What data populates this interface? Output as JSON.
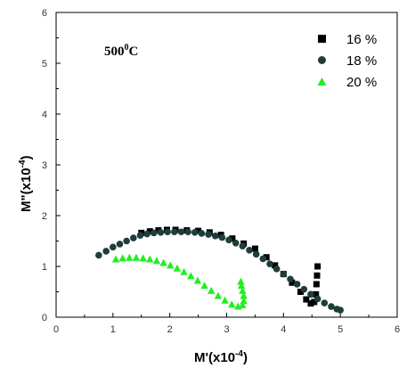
{
  "chart_data": {
    "type": "scatter",
    "xlabel": "M'(x10",
    "xlabel_exp": "-4",
    "xlabel_close": ")",
    "ylabel": "M\"(x10",
    "ylabel_exp": "-4",
    "ylabel_close": ")",
    "xlim": [
      0,
      6
    ],
    "ylim": [
      0,
      6
    ],
    "xticks": [
      "0",
      "1",
      "2",
      "3",
      "4",
      "5",
      "6"
    ],
    "yticks": [
      "0",
      "1",
      "2",
      "3",
      "4",
      "5",
      "6"
    ],
    "grid": false,
    "legend_position": "top-right",
    "annotation": {
      "text": "500",
      "sup": "0",
      "suffix": "C"
    },
    "series": [
      {
        "name": "16 %",
        "marker": "square",
        "color": "#000000",
        "points": [
          [
            1.5,
            1.66
          ],
          [
            1.65,
            1.69
          ],
          [
            1.8,
            1.71
          ],
          [
            1.95,
            1.72
          ],
          [
            2.1,
            1.72
          ],
          [
            2.3,
            1.71
          ],
          [
            2.5,
            1.7
          ],
          [
            2.7,
            1.67
          ],
          [
            2.9,
            1.62
          ],
          [
            3.1,
            1.55
          ],
          [
            3.3,
            1.45
          ],
          [
            3.5,
            1.35
          ],
          [
            3.7,
            1.18
          ],
          [
            3.85,
            1.02
          ],
          [
            4.0,
            0.85
          ],
          [
            4.15,
            0.68
          ],
          [
            4.3,
            0.5
          ],
          [
            4.4,
            0.35
          ],
          [
            4.48,
            0.27
          ],
          [
            4.54,
            0.3
          ],
          [
            4.57,
            0.45
          ],
          [
            4.58,
            0.65
          ],
          [
            4.59,
            0.82
          ],
          [
            4.6,
            1.0
          ]
        ]
      },
      {
        "name": "18 %",
        "marker": "circle",
        "color": "#1f3d3a",
        "points": [
          [
            0.75,
            1.22
          ],
          [
            0.88,
            1.3
          ],
          [
            1.0,
            1.38
          ],
          [
            1.12,
            1.44
          ],
          [
            1.24,
            1.5
          ],
          [
            1.36,
            1.56
          ],
          [
            1.48,
            1.61
          ],
          [
            1.6,
            1.64
          ],
          [
            1.72,
            1.66
          ],
          [
            1.84,
            1.67
          ],
          [
            1.96,
            1.68
          ],
          [
            2.08,
            1.68
          ],
          [
            2.2,
            1.68
          ],
          [
            2.32,
            1.68
          ],
          [
            2.44,
            1.67
          ],
          [
            2.56,
            1.65
          ],
          [
            2.68,
            1.63
          ],
          [
            2.8,
            1.6
          ],
          [
            2.92,
            1.57
          ],
          [
            3.04,
            1.52
          ],
          [
            3.16,
            1.46
          ],
          [
            3.28,
            1.4
          ],
          [
            3.4,
            1.32
          ],
          [
            3.52,
            1.24
          ],
          [
            3.64,
            1.15
          ],
          [
            3.76,
            1.05
          ],
          [
            3.88,
            0.95
          ],
          [
            4.0,
            0.85
          ],
          [
            4.12,
            0.75
          ],
          [
            4.24,
            0.65
          ],
          [
            4.36,
            0.55
          ],
          [
            4.48,
            0.45
          ],
          [
            4.6,
            0.36
          ],
          [
            4.72,
            0.28
          ],
          [
            4.84,
            0.21
          ],
          [
            4.94,
            0.16
          ],
          [
            5.0,
            0.14
          ]
        ]
      },
      {
        "name": "20 %",
        "marker": "triangle",
        "color": "#22ee22",
        "points": [
          [
            1.05,
            1.14
          ],
          [
            1.17,
            1.16
          ],
          [
            1.29,
            1.17
          ],
          [
            1.41,
            1.17
          ],
          [
            1.53,
            1.16
          ],
          [
            1.65,
            1.14
          ],
          [
            1.77,
            1.11
          ],
          [
            1.89,
            1.07
          ],
          [
            2.01,
            1.02
          ],
          [
            2.13,
            0.96
          ],
          [
            2.25,
            0.89
          ],
          [
            2.37,
            0.81
          ],
          [
            2.49,
            0.72
          ],
          [
            2.61,
            0.62
          ],
          [
            2.73,
            0.52
          ],
          [
            2.85,
            0.42
          ],
          [
            2.97,
            0.33
          ],
          [
            3.09,
            0.25
          ],
          [
            3.2,
            0.21
          ],
          [
            3.28,
            0.24
          ],
          [
            3.3,
            0.32
          ],
          [
            3.3,
            0.42
          ],
          [
            3.28,
            0.52
          ],
          [
            3.26,
            0.62
          ],
          [
            3.25,
            0.7
          ]
        ]
      }
    ]
  }
}
